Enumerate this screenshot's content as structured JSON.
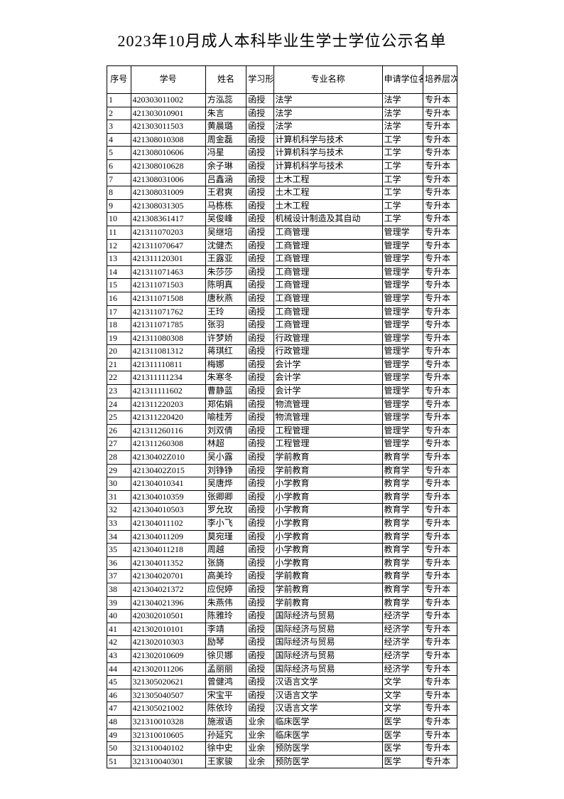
{
  "title": "2023年10月成人本科毕业生学士学位公示名单",
  "headers": {
    "seq": "序号",
    "id": "学号",
    "name": "姓名",
    "mode": "学习形式",
    "major": "专业名称",
    "degree": "申请学位名称",
    "level": "培养层次"
  },
  "rows": [
    {
      "seq": "1",
      "id": "420303011002",
      "name": "方泓蕊",
      "mode": "函授",
      "major": "法学",
      "degree": "法学",
      "level": "专升本"
    },
    {
      "seq": "2",
      "id": "421303010901",
      "name": "朱言",
      "mode": "函授",
      "major": "法学",
      "degree": "法学",
      "level": "专升本"
    },
    {
      "seq": "3",
      "id": "421303011503",
      "name": "黄晨璐",
      "mode": "函授",
      "major": "法学",
      "degree": "法学",
      "level": "专升本"
    },
    {
      "seq": "4",
      "id": "421308010308",
      "name": "周金磊",
      "mode": "函授",
      "major": "计算机科学与技术",
      "degree": "工学",
      "level": "专升本"
    },
    {
      "seq": "5",
      "id": "421308010606",
      "name": "冯星",
      "mode": "函授",
      "major": "计算机科学与技术",
      "degree": "工学",
      "level": "专升本"
    },
    {
      "seq": "6",
      "id": "421308010628",
      "name": "余子琳",
      "mode": "函授",
      "major": "计算机科学与技术",
      "degree": "工学",
      "level": "专升本"
    },
    {
      "seq": "7",
      "id": "421308031006",
      "name": "吕鑫涵",
      "mode": "函授",
      "major": "土木工程",
      "degree": "工学",
      "level": "专升本"
    },
    {
      "seq": "8",
      "id": "421308031009",
      "name": "王君爽",
      "mode": "函授",
      "major": "土木工程",
      "degree": "工学",
      "level": "专升本"
    },
    {
      "seq": "9",
      "id": "421308031305",
      "name": "马栋栋",
      "mode": "函授",
      "major": "土木工程",
      "degree": "工学",
      "level": "专升本"
    },
    {
      "seq": "10",
      "id": "421308361417",
      "name": "吴俊峰",
      "mode": "函授",
      "major": "机械设计制造及其自动",
      "degree": "工学",
      "level": "专升本"
    },
    {
      "seq": "11",
      "id": "421311070203",
      "name": "吴继培",
      "mode": "函授",
      "major": "工商管理",
      "degree": "管理学",
      "level": "专升本"
    },
    {
      "seq": "12",
      "id": "421311070647",
      "name": "沈健杰",
      "mode": "函授",
      "major": "工商管理",
      "degree": "管理学",
      "level": "专升本"
    },
    {
      "seq": "13",
      "id": "421311120301",
      "name": "王露亚",
      "mode": "函授",
      "major": "工商管理",
      "degree": "管理学",
      "level": "专升本"
    },
    {
      "seq": "14",
      "id": "421311071463",
      "name": "朱莎莎",
      "mode": "函授",
      "major": "工商管理",
      "degree": "管理学",
      "level": "专升本"
    },
    {
      "seq": "15",
      "id": "421311071503",
      "name": "陈明真",
      "mode": "函授",
      "major": "工商管理",
      "degree": "管理学",
      "level": "专升本"
    },
    {
      "seq": "16",
      "id": "421311071508",
      "name": "唐秋燕",
      "mode": "函授",
      "major": "工商管理",
      "degree": "管理学",
      "level": "专升本"
    },
    {
      "seq": "17",
      "id": "421311071762",
      "name": "王玲",
      "mode": "函授",
      "major": "工商管理",
      "degree": "管理学",
      "level": "专升本"
    },
    {
      "seq": "18",
      "id": "421311071785",
      "name": "张羽",
      "mode": "函授",
      "major": "工商管理",
      "degree": "管理学",
      "level": "专升本"
    },
    {
      "seq": "19",
      "id": "421311080308",
      "name": "许梦娇",
      "mode": "函授",
      "major": "行政管理",
      "degree": "管理学",
      "level": "专升本"
    },
    {
      "seq": "20",
      "id": "421311081312",
      "name": "蒋琪红",
      "mode": "函授",
      "major": "行政管理",
      "degree": "管理学",
      "level": "专升本"
    },
    {
      "seq": "21",
      "id": "421311110811",
      "name": "梅娜",
      "mode": "函授",
      "major": "会计学",
      "degree": "管理学",
      "level": "专升本"
    },
    {
      "seq": "22",
      "id": "421311111234",
      "name": "朱寒冬",
      "mode": "函授",
      "major": "会计学",
      "degree": "管理学",
      "level": "专升本"
    },
    {
      "seq": "23",
      "id": "421311111602",
      "name": "曹静蓝",
      "mode": "函授",
      "major": "会计学",
      "degree": "管理学",
      "level": "专升本"
    },
    {
      "seq": "24",
      "id": "421311220203",
      "name": "郑佑娟",
      "mode": "函授",
      "major": "物流管理",
      "degree": "管理学",
      "level": "专升本"
    },
    {
      "seq": "25",
      "id": "421311220420",
      "name": "喻桂芳",
      "mode": "函授",
      "major": "物流管理",
      "degree": "管理学",
      "level": "专升本"
    },
    {
      "seq": "26",
      "id": "421311260116",
      "name": "刘双倩",
      "mode": "函授",
      "major": "工程管理",
      "degree": "管理学",
      "level": "专升本"
    },
    {
      "seq": "27",
      "id": "421311260308",
      "name": "林超",
      "mode": "函授",
      "major": "工程管理",
      "degree": "管理学",
      "level": "专升本"
    },
    {
      "seq": "28",
      "id": "42130402Z010",
      "name": "吴小露",
      "mode": "函授",
      "major": "学前教育",
      "degree": "教育学",
      "level": "专升本"
    },
    {
      "seq": "29",
      "id": "42130402Z015",
      "name": "刘铮铮",
      "mode": "函授",
      "major": "学前教育",
      "degree": "教育学",
      "level": "专升本"
    },
    {
      "seq": "30",
      "id": "421304010341",
      "name": "吴唐烨",
      "mode": "函授",
      "major": "小学教育",
      "degree": "教育学",
      "level": "专升本"
    },
    {
      "seq": "31",
      "id": "421304010359",
      "name": "张卿卿",
      "mode": "函授",
      "major": "小学教育",
      "degree": "教育学",
      "level": "专升本"
    },
    {
      "seq": "32",
      "id": "421304010503",
      "name": "罗允玫",
      "mode": "函授",
      "major": "小学教育",
      "degree": "教育学",
      "level": "专升本"
    },
    {
      "seq": "33",
      "id": "421304011102",
      "name": "李小飞",
      "mode": "函授",
      "major": "小学教育",
      "degree": "教育学",
      "level": "专升本"
    },
    {
      "seq": "34",
      "id": "421304011209",
      "name": "莫宛瑾",
      "mode": "函授",
      "major": "小学教育",
      "degree": "教育学",
      "level": "专升本"
    },
    {
      "seq": "35",
      "id": "421304011218",
      "name": "周越",
      "mode": "函授",
      "major": "小学教育",
      "degree": "教育学",
      "level": "专升本"
    },
    {
      "seq": "36",
      "id": "421304011352",
      "name": "张旖",
      "mode": "函授",
      "major": "小学教育",
      "degree": "教育学",
      "level": "专升本"
    },
    {
      "seq": "37",
      "id": "421304020701",
      "name": "高美玲",
      "mode": "函授",
      "major": "学前教育",
      "degree": "教育学",
      "level": "专升本"
    },
    {
      "seq": "38",
      "id": "421304021372",
      "name": "应倪婷",
      "mode": "函授",
      "major": "学前教育",
      "degree": "教育学",
      "level": "专升本"
    },
    {
      "seq": "39",
      "id": "421304021396",
      "name": "朱燕伟",
      "mode": "函授",
      "major": "学前教育",
      "degree": "教育学",
      "level": "专升本"
    },
    {
      "seq": "40",
      "id": "420302010501",
      "name": "陈雅玲",
      "mode": "函授",
      "major": "国际经济与贸易",
      "degree": "经济学",
      "level": "专升本"
    },
    {
      "seq": "41",
      "id": "421302010101",
      "name": "李靖",
      "mode": "函授",
      "major": "国际经济与贸易",
      "degree": "经济学",
      "level": "专升本"
    },
    {
      "seq": "42",
      "id": "421302010303",
      "name": "励琴",
      "mode": "函授",
      "major": "国际经济与贸易",
      "degree": "经济学",
      "level": "专升本"
    },
    {
      "seq": "43",
      "id": "421302010609",
      "name": "徐贝娜",
      "mode": "函授",
      "major": "国际经济与贸易",
      "degree": "经济学",
      "level": "专升本"
    },
    {
      "seq": "44",
      "id": "421302011206",
      "name": "孟丽丽",
      "mode": "函授",
      "major": "国际经济与贸易",
      "degree": "经济学",
      "level": "专升本"
    },
    {
      "seq": "45",
      "id": "321305020621",
      "name": "曾健鸿",
      "mode": "函授",
      "major": "汉语言文学",
      "degree": "文学",
      "level": "专升本"
    },
    {
      "seq": "46",
      "id": "321305040507",
      "name": "宋宝平",
      "mode": "函授",
      "major": "汉语言文学",
      "degree": "文学",
      "level": "专升本"
    },
    {
      "seq": "47",
      "id": "421305021002",
      "name": "陈依玲",
      "mode": "函授",
      "major": "汉语言文学",
      "degree": "文学",
      "level": "专升本"
    },
    {
      "seq": "48",
      "id": "321310010328",
      "name": "施淑语",
      "mode": "业余",
      "major": "临床医学",
      "degree": "医学",
      "level": "专升本"
    },
    {
      "seq": "49",
      "id": "321310010605",
      "name": "孙延究",
      "mode": "业余",
      "major": "临床医学",
      "degree": "医学",
      "level": "专升本"
    },
    {
      "seq": "50",
      "id": "321310040102",
      "name": "徐中史",
      "mode": "业余",
      "major": "预防医学",
      "degree": "医学",
      "level": "专升本"
    },
    {
      "seq": "51",
      "id": "321310040301",
      "name": "王家骏",
      "mode": "业余",
      "major": "预防医学",
      "degree": "医学",
      "level": "专升本"
    }
  ]
}
